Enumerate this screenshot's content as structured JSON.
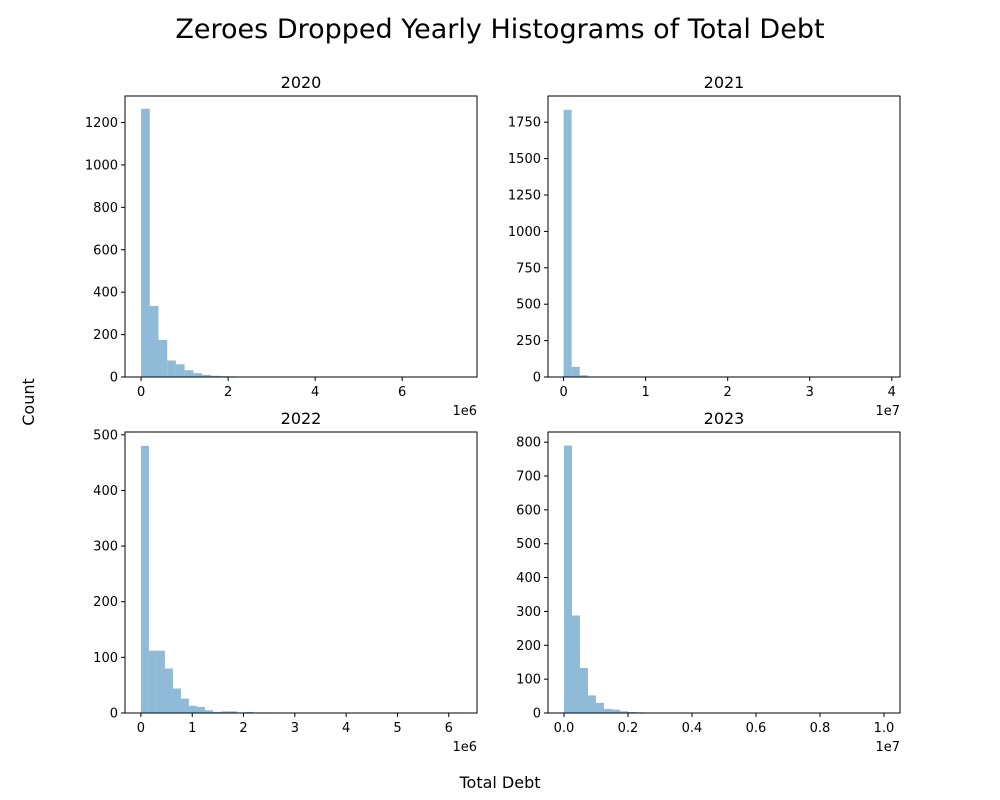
{
  "figure": {
    "title": "Zeroes Dropped Yearly Histograms of Total Debt",
    "xlabel": "Total Debt",
    "ylabel": "Count"
  },
  "colors": {
    "bar": "#1f77b4"
  },
  "chart_data": [
    {
      "type": "bar",
      "title": "2020",
      "offset_text": "1e6",
      "xlim": [
        -0.37,
        7.72
      ],
      "ylim": [
        0,
        1325
      ],
      "xticks": [
        0,
        2,
        4,
        6
      ],
      "xtick_labels": [
        "0",
        "2",
        "4",
        "6"
      ],
      "yticks": [
        0,
        200,
        400,
        600,
        800,
        1000,
        1200
      ],
      "ytick_labels": [
        "0",
        "200",
        "400",
        "600",
        "800",
        "1000",
        "1200"
      ],
      "bin_width": 0.2,
      "bin_start": 0,
      "values": [
        1265,
        335,
        175,
        78,
        60,
        32,
        18,
        10,
        6,
        4,
        3,
        2,
        1,
        1,
        1,
        1,
        1,
        0,
        0,
        0,
        0,
        0,
        0,
        0,
        0,
        0,
        0,
        0,
        0,
        0,
        0,
        0,
        0,
        0,
        0,
        0,
        1
      ]
    },
    {
      "type": "bar",
      "title": "2021",
      "offset_text": "1e7",
      "xlim": [
        -0.19,
        4.1
      ],
      "ylim": [
        0,
        1930
      ],
      "xticks": [
        0,
        1,
        2,
        3,
        4
      ],
      "xtick_labels": [
        "0",
        "1",
        "2",
        "3",
        "4"
      ],
      "yticks": [
        0,
        250,
        500,
        750,
        1000,
        1250,
        1500,
        1750
      ],
      "ytick_labels": [
        "0",
        "250",
        "500",
        "750",
        "1000",
        "1250",
        "1500",
        "1750"
      ],
      "bin_width": 0.098,
      "bin_start": 0,
      "values": [
        1835,
        70,
        12,
        3,
        1,
        1
      ]
    },
    {
      "type": "bar",
      "title": "2022",
      "offset_text": "1e6",
      "xlim": [
        -0.31,
        6.55
      ],
      "ylim": [
        0,
        505
      ],
      "xticks": [
        0,
        1,
        2,
        3,
        4,
        5,
        6
      ],
      "xtick_labels": [
        "0",
        "1",
        "2",
        "3",
        "4",
        "5",
        "6"
      ],
      "yticks": [
        0,
        100,
        200,
        300,
        400,
        500
      ],
      "ytick_labels": [
        "0",
        "100",
        "200",
        "300",
        "400",
        "500"
      ],
      "bin_width": 0.156,
      "bin_start": 0,
      "values": [
        480,
        112,
        112,
        80,
        44,
        26,
        13,
        11,
        5,
        2,
        3,
        3,
        1,
        2,
        1,
        1,
        1,
        0,
        0,
        0,
        0,
        0,
        0,
        0,
        0,
        0,
        0,
        0,
        0,
        0,
        0,
        0,
        0,
        0,
        0,
        0,
        0,
        0,
        0,
        1
      ]
    },
    {
      "type": "bar",
      "title": "2023",
      "offset_text": "1e7",
      "xlim": [
        -0.05,
        1.05
      ],
      "ylim": [
        0,
        830
      ],
      "xticks": [
        0,
        0.2,
        0.4,
        0.6,
        0.8,
        1.0
      ],
      "xtick_labels": [
        "0.0",
        "0.2",
        "0.4",
        "0.6",
        "0.8",
        "1.0"
      ],
      "yticks": [
        0,
        100,
        200,
        300,
        400,
        500,
        600,
        700,
        800
      ],
      "ytick_labels": [
        "0",
        "100",
        "200",
        "300",
        "400",
        "500",
        "600",
        "700",
        "800"
      ],
      "bin_width": 0.025,
      "bin_start": 0,
      "values": [
        790,
        288,
        133,
        52,
        30,
        12,
        10,
        5,
        3,
        2,
        1,
        1
      ]
    }
  ]
}
